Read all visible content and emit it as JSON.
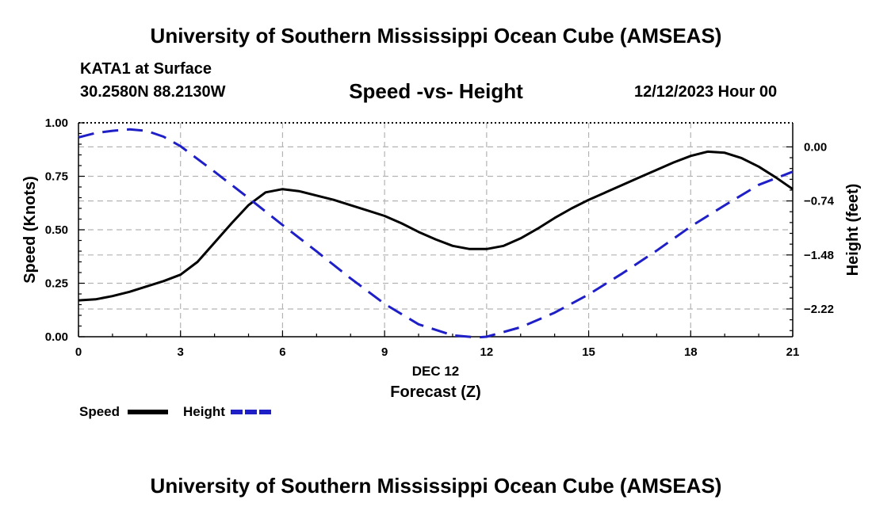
{
  "header": {
    "title": "University of Southern Mississippi Ocean Cube (AMSEAS)",
    "station": "KATA1 at Surface",
    "coords": "30.2580N  88.2130W",
    "date": "12/12/2023 Hour 00"
  },
  "footer": {
    "title": "University of Southern Mississippi Ocean Cube (AMSEAS)"
  },
  "colors": {
    "speed": "#000000",
    "height": "#1f1fc8",
    "grid": "#b4b4b4"
  },
  "chart_data": {
    "type": "line",
    "title": "Speed -vs- Height",
    "xlabel": "Forecast (Z)",
    "xlabel_date": "DEC 12",
    "ylabel": "Speed (Knots)",
    "ylabel_right": "Height (feet)",
    "xlim": [
      0,
      21
    ],
    "ylim": [
      0,
      1
    ],
    "ylim_right": [
      -2.6,
      0.33
    ],
    "x_ticks": [
      0,
      3,
      6,
      9,
      12,
      15,
      18,
      21
    ],
    "x_tick_labels": [
      "0",
      "3",
      "6",
      "9",
      "12",
      "15",
      "18",
      "21"
    ],
    "y_ticks": [
      0,
      0.25,
      0.5,
      0.75,
      1.0
    ],
    "y_tick_labels": [
      "0.00",
      "0.25",
      "0.50",
      "0.75",
      "1.00"
    ],
    "y2_ticks": [
      0,
      -0.74,
      -1.48,
      -2.22
    ],
    "y2_tick_labels": [
      "0.00",
      "−0.74",
      "−1.48",
      "−2.22"
    ],
    "grid": true,
    "legend": [
      "Speed",
      "Height"
    ],
    "series": [
      {
        "name": "Speed",
        "axis": "left",
        "style": "solid",
        "x": [
          0,
          0.5,
          1,
          1.5,
          2,
          2.5,
          3,
          3.5,
          4,
          4.5,
          5,
          5.5,
          6,
          6.5,
          7,
          7.5,
          8,
          8.5,
          9,
          9.5,
          10,
          10.5,
          11,
          11.5,
          12,
          12.5,
          13,
          13.5,
          14,
          14.5,
          15,
          15.5,
          16,
          16.5,
          17,
          17.5,
          18,
          18.5,
          19,
          19.5,
          20,
          20.5,
          21
        ],
        "values": [
          0.17,
          0.175,
          0.19,
          0.21,
          0.235,
          0.26,
          0.29,
          0.35,
          0.44,
          0.53,
          0.615,
          0.675,
          0.69,
          0.68,
          0.66,
          0.64,
          0.615,
          0.59,
          0.565,
          0.53,
          0.49,
          0.455,
          0.425,
          0.41,
          0.41,
          0.425,
          0.46,
          0.505,
          0.555,
          0.6,
          0.64,
          0.675,
          0.71,
          0.745,
          0.78,
          0.815,
          0.845,
          0.865,
          0.86,
          0.835,
          0.795,
          0.745,
          0.69
        ]
      },
      {
        "name": "Height",
        "axis": "right",
        "style": "dashed",
        "x": [
          0,
          0.5,
          1,
          1.5,
          2,
          2.5,
          3,
          4,
          5,
          6,
          7,
          8,
          9,
          10,
          11,
          11.7,
          12,
          13,
          14,
          15,
          16,
          17,
          18,
          19,
          20,
          21
        ],
        "values": [
          0.13,
          0.19,
          0.22,
          0.24,
          0.22,
          0.14,
          0.01,
          -0.34,
          -0.7,
          -1.07,
          -1.43,
          -1.8,
          -2.15,
          -2.43,
          -2.58,
          -2.61,
          -2.6,
          -2.47,
          -2.27,
          -2.02,
          -1.73,
          -1.42,
          -1.09,
          -0.8,
          -0.52,
          -0.34
        ]
      }
    ]
  }
}
